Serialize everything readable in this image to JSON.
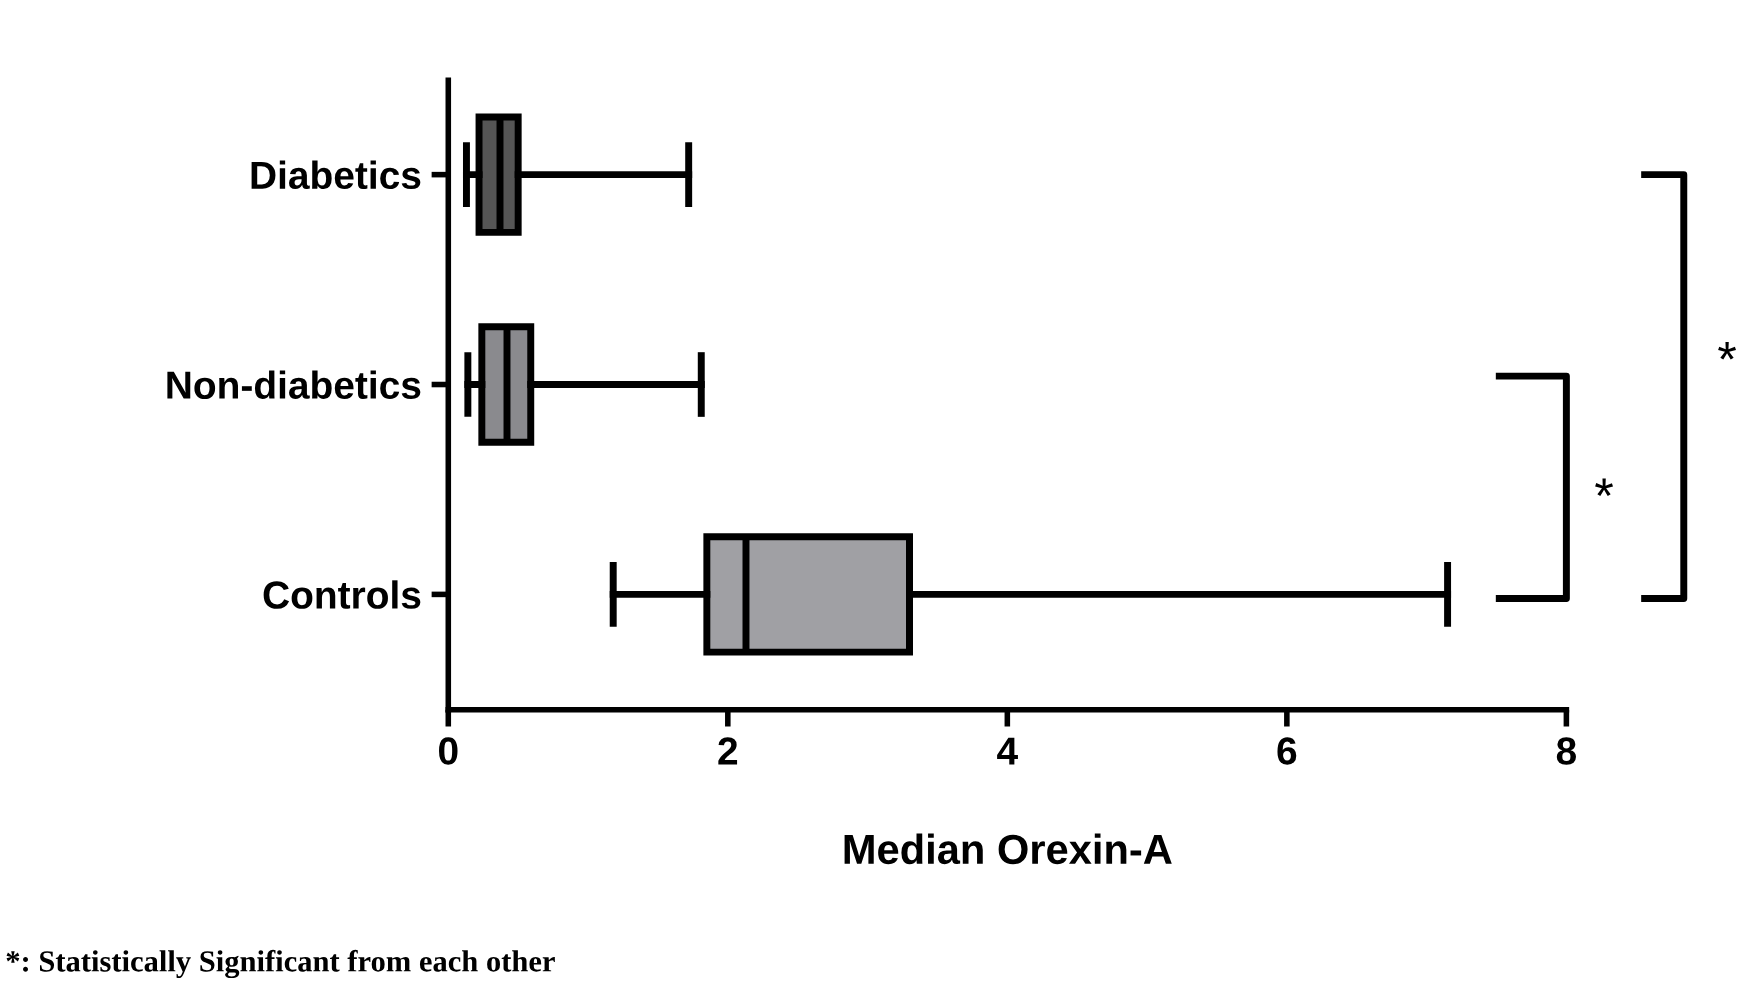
{
  "chart_data": {
    "type": "box",
    "orientation": "horizontal",
    "xlabel": "Median Orexin-A",
    "categories": [
      "Diabetics",
      "Non-diabetics",
      "Controls"
    ],
    "boxes": [
      {
        "low": 0.13,
        "q1": 0.22,
        "median": 0.37,
        "q3": 0.5,
        "high": 1.72
      },
      {
        "low": 0.14,
        "q1": 0.24,
        "median": 0.42,
        "q3": 0.59,
        "high": 1.81
      },
      {
        "low": 1.18,
        "q1": 1.85,
        "median": 2.13,
        "q3": 3.3,
        "high": 7.15
      }
    ],
    "colors": [
      "#555555",
      "#8a8a8e",
      "#a0a0a4"
    ],
    "xlim": [
      0,
      8
    ],
    "xticks": [
      0,
      2,
      4,
      6,
      8
    ],
    "grid": false,
    "annotations": [
      "*",
      "*",
      "*: Statistically Significant from each other"
    ]
  }
}
